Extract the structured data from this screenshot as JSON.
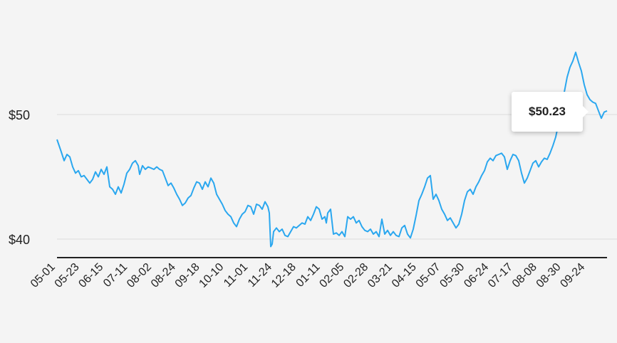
{
  "colors": {
    "background": "#f4f4f4",
    "line": "#2aa7ef",
    "grid": "#dddddd",
    "axis": "#222222",
    "text": "#222222"
  },
  "tooltip": {
    "value_label": "$50.23"
  },
  "chart_data": {
    "type": "line",
    "title": "",
    "xlabel": "",
    "ylabel": "",
    "ylim": [
      38.5,
      57
    ],
    "grid": true,
    "y_ticks": [
      {
        "value": 40,
        "label": "$40"
      },
      {
        "value": 50,
        "label": "$50"
      }
    ],
    "x_tick_labels": [
      "05-01",
      "05-23",
      "06-15",
      "07-11",
      "08-02",
      "08-24",
      "09-18",
      "10-10",
      "11-01",
      "11-24",
      "12-18",
      "01-11",
      "02-05",
      "02-28",
      "03-21",
      "04-15",
      "05-07",
      "05-30",
      "06-24",
      "07-17",
      "08-08",
      "08-30",
      "09-24"
    ],
    "series": [
      {
        "values": [
          [
            0,
            48.0
          ],
          [
            3,
            47.0
          ],
          [
            5,
            46.3
          ],
          [
            7,
            46.8
          ],
          [
            9,
            46.6
          ],
          [
            11,
            45.8
          ],
          [
            13,
            45.3
          ],
          [
            15,
            45.5
          ],
          [
            17,
            45.0
          ],
          [
            19,
            45.1
          ],
          [
            21,
            44.8
          ],
          [
            23,
            44.5
          ],
          [
            25,
            44.8
          ],
          [
            27,
            45.4
          ],
          [
            29,
            45.0
          ],
          [
            31,
            45.6
          ],
          [
            33,
            45.2
          ],
          [
            35,
            45.8
          ],
          [
            37,
            44.2
          ],
          [
            39,
            44.0
          ],
          [
            41,
            43.6
          ],
          [
            43,
            44.2
          ],
          [
            45,
            43.7
          ],
          [
            47,
            44.4
          ],
          [
            49,
            45.3
          ],
          [
            51,
            45.6
          ],
          [
            53,
            46.1
          ],
          [
            55,
            46.3
          ],
          [
            57,
            45.9
          ],
          [
            58,
            45.2
          ],
          [
            60,
            45.9
          ],
          [
            62,
            45.6
          ],
          [
            64,
            45.8
          ],
          [
            66,
            45.7
          ],
          [
            68,
            45.6
          ],
          [
            70,
            45.8
          ],
          [
            72,
            45.6
          ],
          [
            74,
            45.5
          ],
          [
            76,
            44.9
          ],
          [
            78,
            44.3
          ],
          [
            80,
            44.5
          ],
          [
            82,
            44.1
          ],
          [
            84,
            43.6
          ],
          [
            86,
            43.2
          ],
          [
            88,
            42.7
          ],
          [
            90,
            42.9
          ],
          [
            92,
            43.3
          ],
          [
            94,
            43.5
          ],
          [
            96,
            44.1
          ],
          [
            98,
            44.6
          ],
          [
            100,
            44.5
          ],
          [
            102,
            44.0
          ],
          [
            104,
            44.6
          ],
          [
            106,
            44.2
          ],
          [
            108,
            44.9
          ],
          [
            110,
            44.5
          ],
          [
            112,
            43.6
          ],
          [
            114,
            43.2
          ],
          [
            116,
            42.8
          ],
          [
            118,
            42.3
          ],
          [
            120,
            42.0
          ],
          [
            122,
            41.8
          ],
          [
            124,
            41.3
          ],
          [
            126,
            41.0
          ],
          [
            128,
            41.6
          ],
          [
            130,
            42.0
          ],
          [
            132,
            42.2
          ],
          [
            134,
            42.7
          ],
          [
            136,
            42.6
          ],
          [
            138,
            42.0
          ],
          [
            140,
            42.8
          ],
          [
            142,
            42.7
          ],
          [
            144,
            42.4
          ],
          [
            146,
            43.0
          ],
          [
            148,
            42.6
          ],
          [
            149,
            42.1
          ],
          [
            150,
            39.4
          ],
          [
            151,
            39.6
          ],
          [
            152,
            40.6
          ],
          [
            154,
            40.9
          ],
          [
            156,
            40.6
          ],
          [
            158,
            40.8
          ],
          [
            160,
            40.3
          ],
          [
            162,
            40.2
          ],
          [
            164,
            40.6
          ],
          [
            166,
            41.0
          ],
          [
            168,
            40.9
          ],
          [
            170,
            41.1
          ],
          [
            172,
            41.3
          ],
          [
            174,
            41.2
          ],
          [
            176,
            41.8
          ],
          [
            178,
            41.5
          ],
          [
            180,
            42.0
          ],
          [
            182,
            42.6
          ],
          [
            184,
            42.4
          ],
          [
            186,
            41.6
          ],
          [
            188,
            41.8
          ],
          [
            189,
            41.3
          ],
          [
            190,
            42.1
          ],
          [
            192,
            42.4
          ],
          [
            194,
            40.4
          ],
          [
            196,
            40.5
          ],
          [
            198,
            40.3
          ],
          [
            200,
            40.6
          ],
          [
            202,
            40.2
          ],
          [
            204,
            41.8
          ],
          [
            206,
            41.6
          ],
          [
            208,
            41.8
          ],
          [
            210,
            41.3
          ],
          [
            212,
            41.5
          ],
          [
            214,
            41.0
          ],
          [
            216,
            40.7
          ],
          [
            218,
            40.6
          ],
          [
            220,
            40.8
          ],
          [
            222,
            40.4
          ],
          [
            224,
            40.6
          ],
          [
            226,
            40.2
          ],
          [
            228,
            41.6
          ],
          [
            230,
            40.4
          ],
          [
            232,
            40.7
          ],
          [
            234,
            40.3
          ],
          [
            236,
            40.6
          ],
          [
            238,
            40.3
          ],
          [
            240,
            40.2
          ],
          [
            242,
            40.9
          ],
          [
            244,
            41.1
          ],
          [
            246,
            40.4
          ],
          [
            248,
            40.1
          ],
          [
            250,
            40.8
          ],
          [
            252,
            41.9
          ],
          [
            254,
            43.1
          ],
          [
            256,
            43.6
          ],
          [
            258,
            44.2
          ],
          [
            260,
            44.9
          ],
          [
            262,
            45.1
          ],
          [
            264,
            43.2
          ],
          [
            266,
            43.6
          ],
          [
            268,
            43.1
          ],
          [
            270,
            42.4
          ],
          [
            272,
            42.0
          ],
          [
            274,
            41.5
          ],
          [
            276,
            41.7
          ],
          [
            278,
            41.3
          ],
          [
            280,
            40.9
          ],
          [
            282,
            41.2
          ],
          [
            284,
            42.0
          ],
          [
            286,
            43.1
          ],
          [
            288,
            43.8
          ],
          [
            290,
            44.0
          ],
          [
            292,
            43.6
          ],
          [
            294,
            44.2
          ],
          [
            296,
            44.6
          ],
          [
            298,
            45.1
          ],
          [
            300,
            45.5
          ],
          [
            302,
            46.2
          ],
          [
            304,
            46.5
          ],
          [
            306,
            46.3
          ],
          [
            308,
            46.7
          ],
          [
            310,
            46.8
          ],
          [
            312,
            46.9
          ],
          [
            314,
            46.6
          ],
          [
            316,
            45.6
          ],
          [
            318,
            46.3
          ],
          [
            320,
            46.8
          ],
          [
            322,
            46.7
          ],
          [
            324,
            46.3
          ],
          [
            326,
            45.3
          ],
          [
            328,
            44.5
          ],
          [
            330,
            44.9
          ],
          [
            332,
            45.5
          ],
          [
            334,
            46.1
          ],
          [
            336,
            46.3
          ],
          [
            338,
            45.8
          ],
          [
            340,
            46.2
          ],
          [
            342,
            46.5
          ],
          [
            344,
            46.4
          ],
          [
            346,
            46.9
          ],
          [
            348,
            47.5
          ],
          [
            350,
            48.2
          ],
          [
            352,
            49.3
          ],
          [
            354,
            50.5
          ],
          [
            356,
            51.8
          ],
          [
            358,
            53.0
          ],
          [
            360,
            53.8
          ],
          [
            362,
            54.3
          ],
          [
            364,
            55.0
          ],
          [
            366,
            54.2
          ],
          [
            368,
            53.5
          ],
          [
            370,
            52.4
          ],
          [
            372,
            51.6
          ],
          [
            374,
            51.2
          ],
          [
            376,
            51.0
          ],
          [
            378,
            50.9
          ],
          [
            380,
            50.3
          ],
          [
            382,
            49.7
          ],
          [
            384,
            50.2
          ],
          [
            386,
            50.3
          ]
        ]
      }
    ]
  }
}
